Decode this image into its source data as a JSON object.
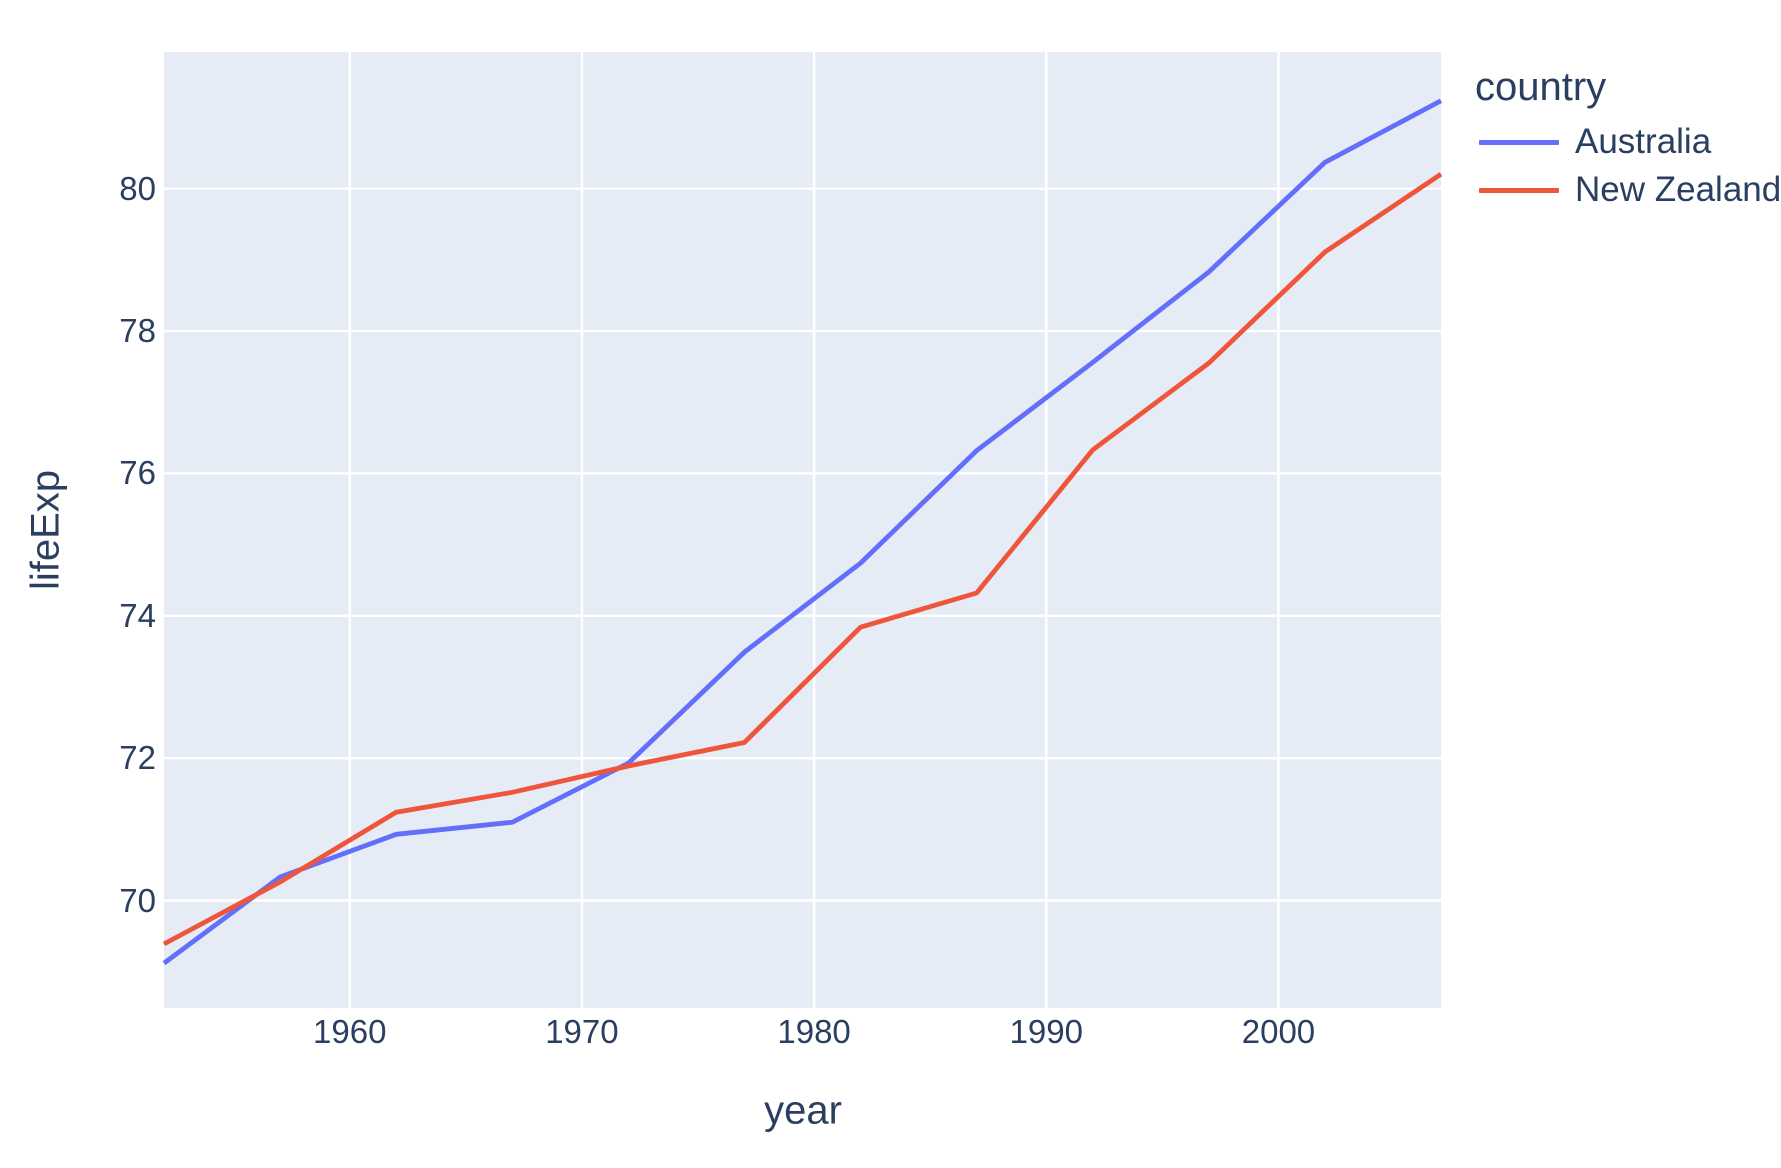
{
  "chart_data": {
    "type": "line",
    "xlabel": "year",
    "ylabel": "lifeExp",
    "legend_title": "country",
    "x": [
      1952,
      1957,
      1962,
      1967,
      1972,
      1977,
      1982,
      1987,
      1992,
      1997,
      2002,
      2007
    ],
    "series": [
      {
        "name": "Australia",
        "color": "#636EFA",
        "values": [
          69.12,
          70.33,
          70.93,
          71.1,
          71.93,
          73.49,
          74.74,
          76.32,
          77.56,
          78.83,
          80.37,
          81.235
        ]
      },
      {
        "name": "New Zealand",
        "color": "#EF553B",
        "values": [
          69.39,
          70.26,
          71.24,
          71.52,
          71.89,
          72.22,
          73.84,
          74.32,
          76.33,
          77.55,
          79.11,
          80.204
        ]
      }
    ],
    "x_ticks": [
      1960,
      1970,
      1980,
      1990,
      2000
    ],
    "y_ticks": [
      70,
      72,
      74,
      76,
      78,
      80
    ],
    "x_range": [
      1952,
      2007
    ],
    "y_range": [
      68.49,
      81.92
    ],
    "grid": true,
    "legend_position": "top-right-outside",
    "plot_background_color": "#E5ECF6",
    "grid_color": "#FFFFFF",
    "text_color": "#2A3F5F"
  }
}
